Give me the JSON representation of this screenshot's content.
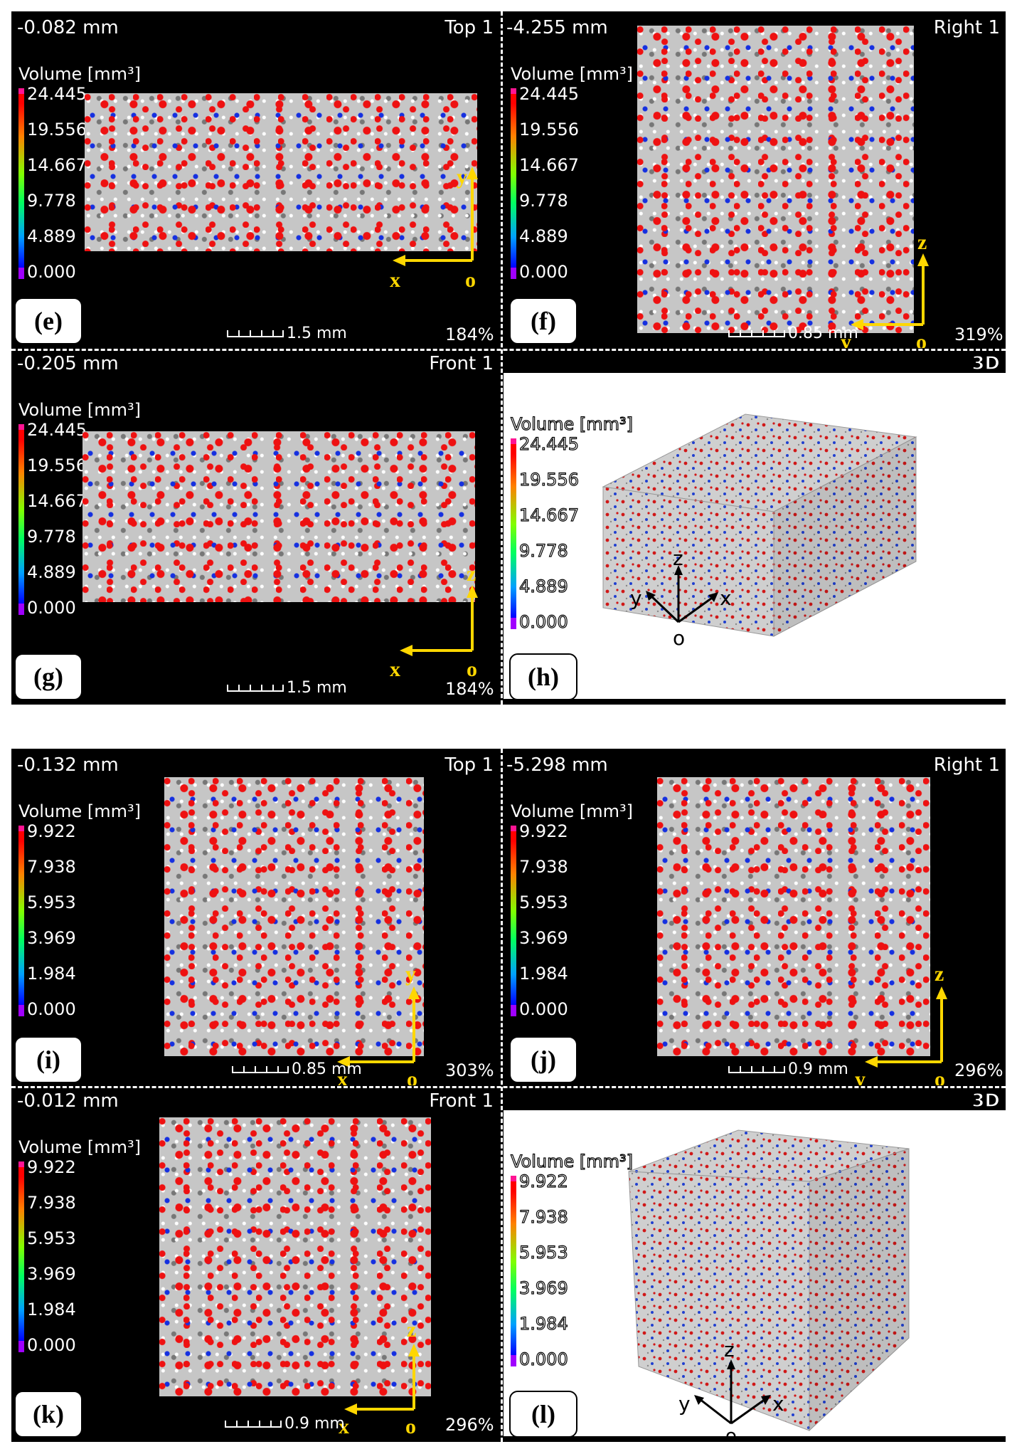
{
  "groups": [
    {
      "panels": [
        {
          "slice": "-0.082 mm",
          "view": "Top 1",
          "legend_title": "Volume [mm³]",
          "ticks": [
            "24.445",
            "19.556",
            "14.667",
            "9.778",
            "4.889",
            "0.000"
          ],
          "label": "(e)",
          "scale": "1.5 mm",
          "zoom": "184%",
          "axis_h": "x",
          "axis_v": "y",
          "origin": "o"
        },
        {
          "slice": "-4.255 mm",
          "view": "Right 1",
          "legend_title": "Volume [mm³]",
          "ticks": [
            "24.445",
            "19.556",
            "14.667",
            "9.778",
            "4.889",
            "0.000"
          ],
          "label": "(f)",
          "scale": "0.85 mm",
          "zoom": "319%",
          "axis_h": "y",
          "axis_v": "z",
          "origin": "o"
        },
        {
          "slice": "-0.205 mm",
          "view": "Front 1",
          "legend_title": "Volume [mm³]",
          "ticks": [
            "24.445",
            "19.556",
            "14.667",
            "9.778",
            "4.889",
            "0.000"
          ],
          "label": "(g)",
          "scale": "1.5 mm",
          "zoom": "184%",
          "axis_h": "x",
          "axis_v": "z",
          "origin": "o"
        },
        {
          "view": "3D",
          "legend_title": "Volume [mm³]",
          "ticks": [
            "24.445",
            "19.556",
            "14.667",
            "9.778",
            "4.889",
            "0.000"
          ],
          "label": "(h)",
          "axis_z": "z",
          "axis_y": "y",
          "axis_x": "x",
          "origin": "o"
        }
      ]
    },
    {
      "panels": [
        {
          "slice": "-0.132 mm",
          "view": "Top 1",
          "legend_title": "Volume [mm³]",
          "ticks": [
            "9.922",
            "7.938",
            "5.953",
            "3.969",
            "1.984",
            "0.000"
          ],
          "label": "(i)",
          "scale": "0.85 mm",
          "zoom": "303%",
          "axis_h": "x",
          "axis_v": "y",
          "origin": "o"
        },
        {
          "slice": "-5.298 mm",
          "view": "Right 1",
          "legend_title": "Volume [mm³]",
          "ticks": [
            "9.922",
            "7.938",
            "5.953",
            "3.969",
            "1.984",
            "0.000"
          ],
          "label": "(j)",
          "scale": "0.9 mm",
          "zoom": "296%",
          "axis_h": "y",
          "axis_v": "z",
          "origin": "o"
        },
        {
          "slice": "-0.012 mm",
          "view": "Front 1",
          "legend_title": "Volume [mm³]",
          "ticks": [
            "9.922",
            "7.938",
            "5.953",
            "3.969",
            "1.984",
            "0.000"
          ],
          "label": "(k)",
          "scale": "0.9 mm",
          "zoom": "296%",
          "axis_h": "x",
          "axis_v": "z",
          "origin": "o"
        },
        {
          "view": "3D",
          "legend_title": "Volume [mm³]",
          "ticks": [
            "9.922",
            "7.938",
            "5.953",
            "3.969",
            "1.984",
            "0.000"
          ],
          "label": "(l)",
          "axis_z": "z",
          "axis_y": "y",
          "axis_x": "x",
          "origin": "o"
        }
      ]
    }
  ]
}
